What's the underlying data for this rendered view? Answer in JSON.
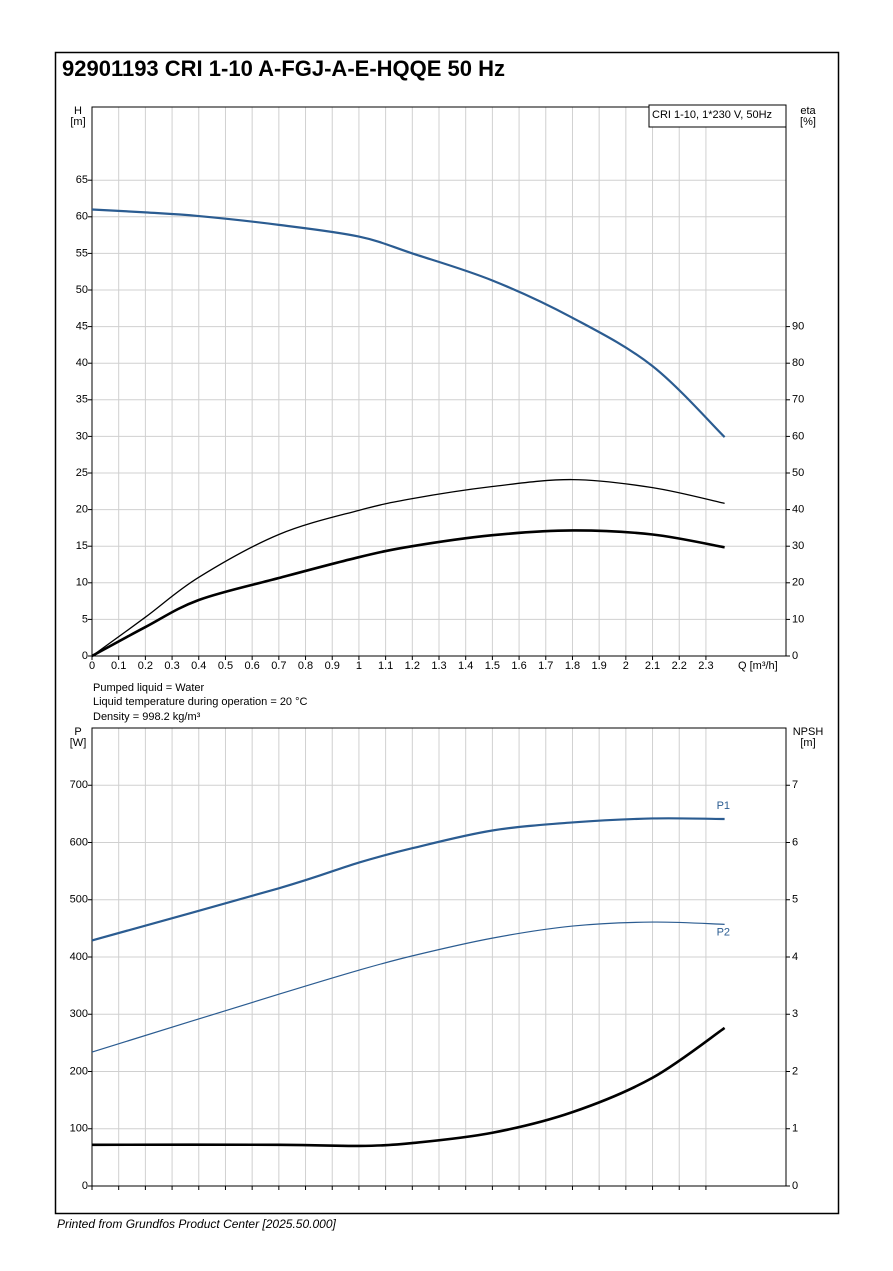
{
  "page_title": "92901193 CRI 1-10 A-FGJ-A-E-HQQE 50 Hz",
  "notes": [
    "Pumped liquid = Water",
    "Liquid temperature during operation = 20 °C",
    "Density = 998.2 kg/m³"
  ],
  "footer": "Printed from Grundfos Product Center [2025.50.000]",
  "chart_data": [
    {
      "type": "line",
      "legend_text": "CRI 1-10, 1*230 V, 50Hz",
      "x_label": "Q [m³/h]",
      "y_label": [
        "H",
        "[m]"
      ],
      "y2_label": [
        "eta",
        "[%]"
      ],
      "x": [
        0,
        0.2,
        0.4,
        0.7,
        1.0,
        1.2,
        1.5,
        1.8,
        2.1,
        2.37
      ],
      "xlim": [
        0,
        2.6
      ],
      "xticks": [
        0,
        0.1,
        0.2,
        0.3,
        0.4,
        0.5,
        0.6,
        0.7,
        0.8,
        0.9,
        1.0,
        1.1,
        1.2,
        1.3,
        1.4,
        1.5,
        1.6,
        1.7,
        1.8,
        1.9,
        2.0,
        2.1,
        2.2,
        2.3
      ],
      "ylim": [
        0,
        75
      ],
      "yticks": [
        0,
        5,
        10,
        15,
        20,
        25,
        30,
        35,
        40,
        45,
        50,
        55,
        60,
        65
      ],
      "y2lim": [
        0,
        150
      ],
      "y2ticks": [
        0,
        10,
        20,
        30,
        40,
        50,
        60,
        70,
        80,
        90
      ],
      "grid": true,
      "series": [
        {
          "color": "#2b5c91",
          "values": [
            61.0,
            60.6,
            60.1,
            58.9,
            57.3,
            55.0,
            51.3,
            46.2,
            39.6,
            29.9
          ]
        },
        {
          "color": "#000000",
          "axis": "y2",
          "values": [
            0,
            10.6,
            21.5,
            33.2,
            39.8,
            43.0,
            46.3,
            48.2,
            46.0,
            41.7
          ]
        },
        {
          "color": "#000000",
          "axis": "y2",
          "values": [
            0,
            7.9,
            15.3,
            21.3,
            27.0,
            30.0,
            33.0,
            34.3,
            33.2,
            29.7
          ]
        }
      ]
    },
    {
      "type": "line",
      "y_label": [
        "P",
        "[W]"
      ],
      "y2_label": [
        "NPSH",
        "[m]"
      ],
      "x": [
        0,
        0.7,
        1.0,
        1.2,
        1.5,
        1.8,
        2.1,
        2.37
      ],
      "xlim": [
        0,
        2.6
      ],
      "xticks": [
        0,
        0.1,
        0.2,
        0.3,
        0.4,
        0.5,
        0.6,
        0.7,
        0.8,
        0.9,
        1.0,
        1.1,
        1.2,
        1.3,
        1.4,
        1.5,
        1.6,
        1.7,
        1.8,
        1.9,
        2.0,
        2.1,
        2.2,
        2.3
      ],
      "ylim": [
        0,
        800
      ],
      "yticks": [
        0,
        100,
        200,
        300,
        400,
        500,
        600,
        700
      ],
      "y2lim": [
        0,
        8
      ],
      "y2ticks": [
        0,
        1,
        2,
        3,
        4,
        5,
        6,
        7
      ],
      "grid": true,
      "series": [
        {
          "name": "P1",
          "color": "#2b5c91",
          "values": [
            429,
            520,
            565,
            590,
            621,
            635,
            642,
            641
          ]
        },
        {
          "name": "P2",
          "color": "#2b5c91",
          "values": [
            234,
            335,
            377,
            402,
            433,
            454,
            461,
            457
          ]
        },
        {
          "color": "#000000",
          "axis": "y2",
          "values": [
            0.72,
            0.72,
            0.7,
            0.75,
            0.93,
            1.29,
            1.89,
            2.76
          ]
        }
      ]
    }
  ]
}
